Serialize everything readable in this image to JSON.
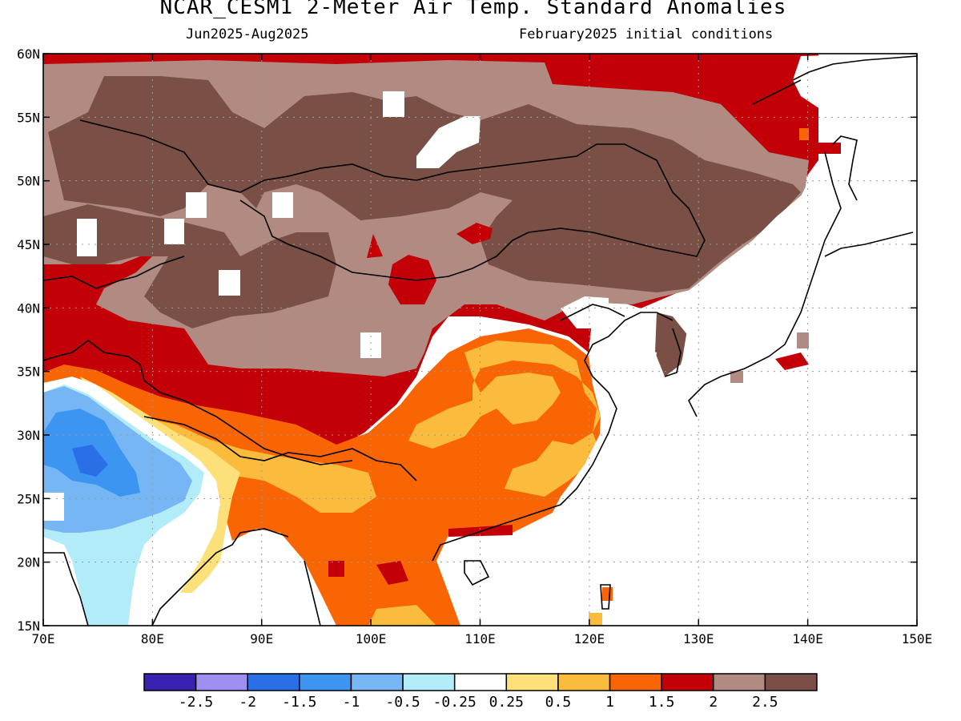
{
  "header": {
    "title": "NCAR_CESM1 2-Meter Air Temp. Standard Anomalies",
    "period": "Jun2025-Aug2025",
    "init": "February2025 initial conditions"
  },
  "map": {
    "lon_range": [
      70,
      150
    ],
    "lat_range": [
      15,
      60
    ],
    "lon_ticks": [
      "70E",
      "80E",
      "90E",
      "100E",
      "110E",
      "120E",
      "130E",
      "140E",
      "150E"
    ],
    "lat_ticks": [
      "15N",
      "20N",
      "25N",
      "30N",
      "35N",
      "40N",
      "45N",
      "50N",
      "55N",
      "60N"
    ],
    "grid": "dotted"
  },
  "colorbar": {
    "colors": [
      "#3a22b0",
      "#9f8ff0",
      "#2b6fe6",
      "#3d95f2",
      "#77b6f5",
      "#b2ecf9",
      "#ffffff",
      "#fde07a",
      "#fbbb3c",
      "#fa6504",
      "#c30008",
      "#b18b82",
      "#7a4f45"
    ],
    "labels": [
      "-2.5",
      "-2",
      "-1.5",
      "-1",
      "-0.5",
      "-0.25",
      "0.25",
      "0.5",
      "1",
      "1.5",
      "2",
      "2.5"
    ]
  }
}
